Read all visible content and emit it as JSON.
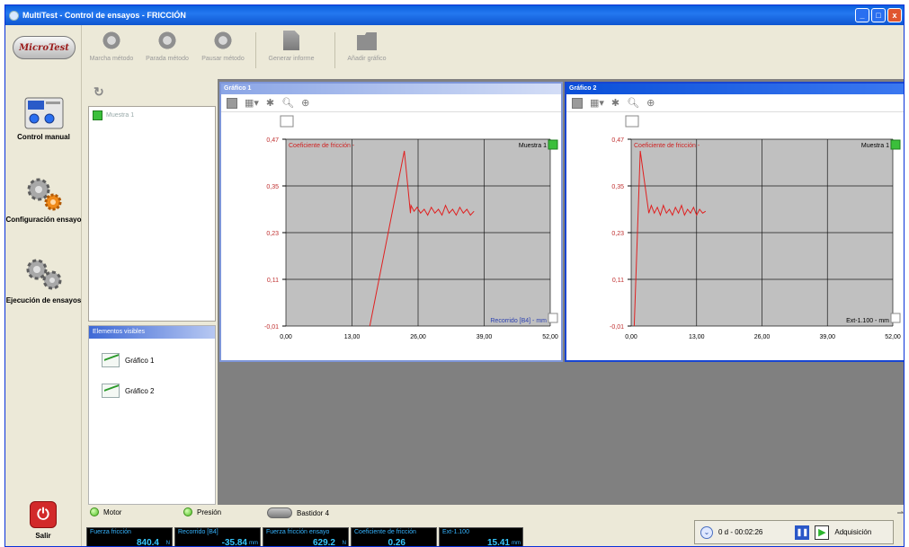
{
  "window": {
    "title": "MultiTest - Control de ensayos - FRICCIÓN",
    "buttons": {
      "minimize": "_",
      "maximize": "□",
      "close": "x"
    }
  },
  "logo": "MicroTest",
  "nav": {
    "manual": "Control manual",
    "config": "Configuración ensayo",
    "run": "Ejecución de ensayos",
    "exit": "Salir"
  },
  "toolbar": {
    "start": "Marcha método",
    "stop": "Parada método",
    "pause": "Pausar método",
    "report": "Generar informe",
    "add_chart": "Añadir gráfico"
  },
  "samples": {
    "items": [
      "Muestra 1"
    ]
  },
  "visible": {
    "header": "Elementos visibles",
    "items": [
      "Gráfico 1",
      "Gráfico 2"
    ]
  },
  "colors": {
    "series": "#e02020",
    "plot_bg": "#c0c0c0",
    "accent": "#1845d2"
  },
  "chart_data": [
    {
      "type": "line",
      "window_title": "Gráfico 1",
      "title": "Coeficiente de fricción -",
      "legend": "Muestra 1",
      "legend_placement": "top-right",
      "xlabel": "Recorrido [B4] - mm",
      "ylabel": "",
      "xlim": [
        0,
        52
      ],
      "ylim": [
        -0.01,
        0.47
      ],
      "x_ticks": [
        "0,00",
        "13,00",
        "26,00",
        "39,00",
        "52,00"
      ],
      "y_ticks": [
        "0,47",
        "0,35",
        "0,23",
        "0,11",
        "-0,01"
      ],
      "grid": true,
      "series": [
        {
          "name": "Muestra 1",
          "x": [
            16.5,
            23.3,
            24.5,
            24.6,
            25.2,
            25.8,
            26.5,
            27.2,
            27.9,
            28.6,
            29.3,
            30.0,
            30.7,
            31.4,
            32.1,
            32.8,
            33.5,
            34.2,
            34.9,
            35.6,
            36.3,
            37.0
          ],
          "y": [
            -0.01,
            0.44,
            0.28,
            0.3,
            0.285,
            0.295,
            0.28,
            0.29,
            0.275,
            0.295,
            0.28,
            0.29,
            0.275,
            0.3,
            0.28,
            0.29,
            0.275,
            0.295,
            0.28,
            0.29,
            0.275,
            0.285
          ]
        }
      ]
    },
    {
      "type": "line",
      "window_title": "Gráfico 2",
      "title": "Coeficiente de fricción -",
      "legend": "Muestra 1",
      "legend_placement": "top-right",
      "xlabel": "Ext-1.100 - mm",
      "ylabel": "",
      "xlim": [
        0,
        52
      ],
      "ylim": [
        -0.01,
        0.47
      ],
      "x_ticks": [
        "0,00",
        "13,00",
        "26,00",
        "39,00",
        "52,00"
      ],
      "y_ticks": [
        "0,47",
        "0,35",
        "0,23",
        "0,11",
        "-0,01"
      ],
      "grid": true,
      "series": [
        {
          "name": "Muestra 1",
          "x": [
            0.6,
            1.8,
            3.5,
            4.0,
            4.6,
            5.2,
            5.8,
            6.4,
            7.0,
            7.6,
            8.2,
            8.8,
            9.4,
            10.0,
            10.6,
            11.2,
            11.8,
            12.4,
            13.0,
            13.6,
            14.2,
            14.8
          ],
          "y": [
            -0.01,
            0.44,
            0.28,
            0.3,
            0.28,
            0.295,
            0.275,
            0.3,
            0.28,
            0.29,
            0.275,
            0.295,
            0.28,
            0.3,
            0.275,
            0.29,
            0.28,
            0.295,
            0.275,
            0.29,
            0.28,
            0.285
          ]
        }
      ]
    }
  ],
  "status": {
    "motor": "Motor",
    "pressure": "Presión",
    "frame": "Bastidor 4"
  },
  "readouts": [
    {
      "label": "Fuerza fricción",
      "value": "840.4",
      "unit": "N"
    },
    {
      "label": "Recorrido [B4]",
      "value": "-35.84",
      "unit": "mm"
    },
    {
      "label": "Fuerza fricción ensayo",
      "value": "629.2",
      "unit": "N"
    },
    {
      "label": "Coeficiente de fricción",
      "value": "0.26",
      "unit": ""
    },
    {
      "label": "Ext-1.100",
      "value": "15.41",
      "unit": "mm"
    }
  ],
  "timer": {
    "elapsed": "0 d - 00:02:26",
    "mode": "Adquisición"
  }
}
